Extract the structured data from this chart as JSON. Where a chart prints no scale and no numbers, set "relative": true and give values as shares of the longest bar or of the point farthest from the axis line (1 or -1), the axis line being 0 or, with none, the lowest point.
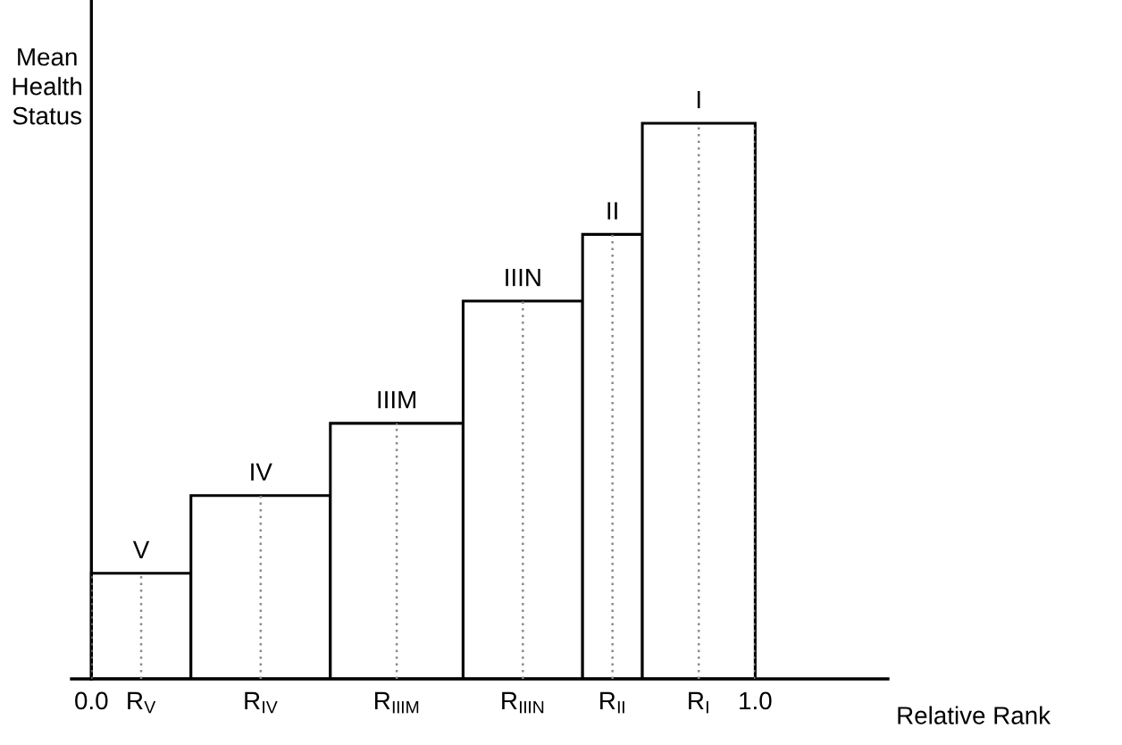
{
  "chart_data": {
    "type": "bar",
    "relative": true,
    "xlabel": "Relative Rank",
    "ylabel": "Mean\nHealth\nStatus",
    "x": [
      0.075,
      0.255,
      0.46,
      0.65,
      0.785,
      0.915
    ],
    "values": [
      0.19,
      0.33,
      0.46,
      0.68,
      0.8,
      1.0
    ],
    "color": "#ffffff",
    "xlim": [
      -0.03,
      1.2
    ],
    "xticks": [
      {
        "value": 0,
        "label": "0.0"
      },
      {
        "value": 0.075,
        "label": "R$_{V}$"
      },
      {
        "value": 0.255,
        "label": "R$_{IV}$"
      },
      {
        "value": 0.46,
        "label": "R$_{IIIM}$"
      },
      {
        "value": 0.65,
        "label": "R$_{IIIN}$"
      },
      {
        "value": 0.785,
        "label": "R$_{II}$"
      },
      {
        "value": 0.915,
        "label": "R$_{I}$"
      },
      {
        "value": 1.0,
        "label": "1.0"
      }
    ],
    "grid": "x",
    "annotations": [
      {
        "text": "V",
        "x": 0.075,
        "y": 0.19
      },
      {
        "text": "IV",
        "x": 0.255,
        "y": 0.33
      },
      {
        "text": "IIIM",
        "x": 0.46,
        "y": 0.46
      },
      {
        "text": "IIIN",
        "x": 0.65,
        "y": 0.68
      },
      {
        "text": "II",
        "x": 0.785,
        "y": 0.8
      },
      {
        "text": "I",
        "x": 0.915,
        "y": 1.0
      }
    ]
  }
}
